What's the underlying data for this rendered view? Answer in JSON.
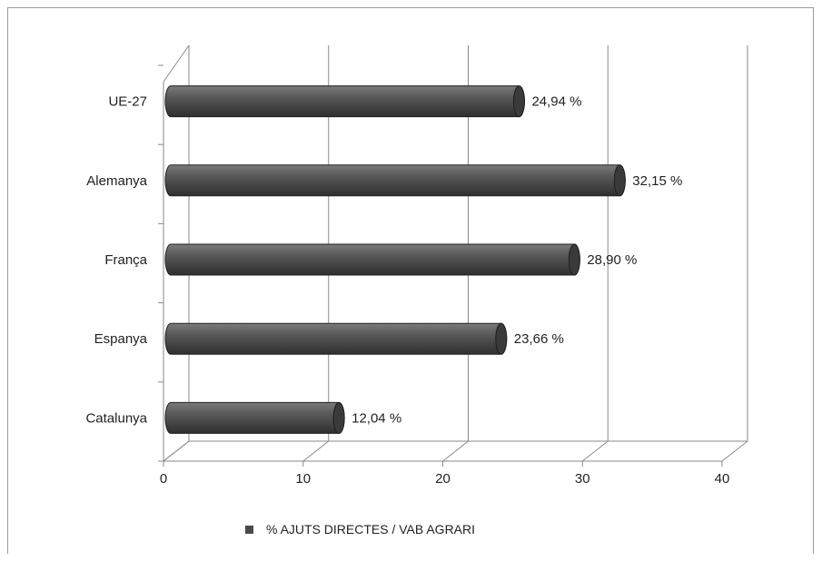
{
  "chart_data": {
    "type": "bar",
    "orientation": "horizontal",
    "categories": [
      "UE-27",
      "Alemanya",
      "França",
      "Espanya",
      "Catalunya"
    ],
    "series": [
      {
        "name": "% AJUTS DIRECTES / VAB AGRARI",
        "values": [
          24.94,
          32.15,
          28.9,
          23.66,
          12.04
        ],
        "labels": [
          "24,94 %",
          "32,15 %",
          "28,90 %",
          "23,66 %",
          "12,04 %"
        ]
      }
    ],
    "x_ticks": [
      "0",
      "10",
      "20",
      "30",
      "40"
    ],
    "xlim": [
      0,
      40
    ],
    "grid": true,
    "legend_position": "bottom",
    "colors": {
      "bar": "#4a4a4a",
      "bar_highlight": "#6a6a6a",
      "grid": "#8a8a8a"
    }
  }
}
